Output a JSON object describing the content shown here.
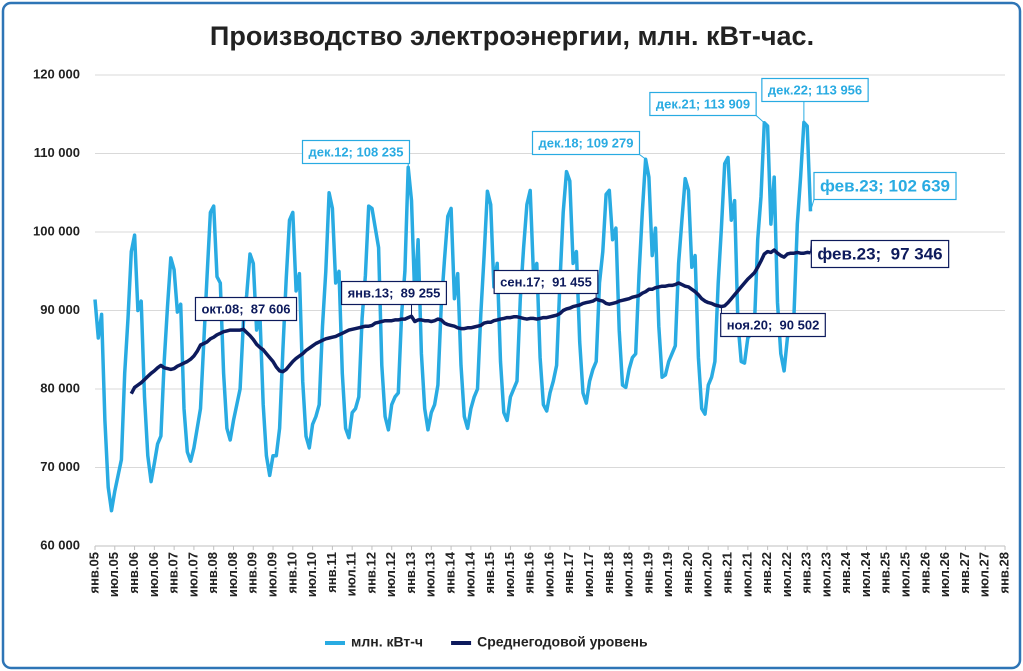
{
  "chart_data": {
    "type": "line",
    "title": "Производство электроэнергии, млн. кВт-час.",
    "categories": [
      "янв.05",
      null,
      null,
      null,
      null,
      null,
      "июл.05",
      null,
      null,
      null,
      null,
      null,
      "янв.06",
      null,
      null,
      null,
      null,
      null,
      "июл.06",
      null,
      null,
      null,
      null,
      null,
      "янв.07",
      null,
      null,
      null,
      null,
      null,
      "июл.07",
      null,
      null,
      null,
      null,
      null,
      "янв.08",
      null,
      null,
      null,
      null,
      null,
      "июл.08",
      null,
      null,
      null,
      null,
      null,
      "янв.09",
      null,
      null,
      null,
      null,
      null,
      "июл.09",
      null,
      null,
      null,
      null,
      null,
      "янв.10",
      null,
      null,
      null,
      null,
      null,
      "июл.10",
      null,
      null,
      null,
      null,
      null,
      "янв.11",
      null,
      null,
      null,
      null,
      null,
      "июл.11",
      null,
      null,
      null,
      null,
      null,
      "янв.12",
      null,
      null,
      null,
      null,
      null,
      "июл.12",
      null,
      null,
      null,
      null,
      null,
      "янв.13",
      null,
      null,
      null,
      null,
      null,
      "июл.13",
      null,
      null,
      null,
      null,
      null,
      "янв.14",
      null,
      null,
      null,
      null,
      null,
      "июл.14",
      null,
      null,
      null,
      null,
      null,
      "янв.15",
      null,
      null,
      null,
      null,
      null,
      "июл.15",
      null,
      null,
      null,
      null,
      null,
      "янв.16",
      null,
      null,
      null,
      null,
      null,
      "июл.16",
      null,
      null,
      null,
      null,
      null,
      "янв.17",
      null,
      null,
      null,
      null,
      null,
      "июл.17",
      null,
      null,
      null,
      null,
      null,
      "янв.18",
      null,
      null,
      null,
      null,
      null,
      "июл.18",
      null,
      null,
      null,
      null,
      null,
      "янв.19",
      null,
      null,
      null,
      null,
      null,
      "июл.19",
      null,
      null,
      null,
      null,
      null,
      "янв.20",
      null,
      null,
      null,
      null,
      null,
      "июл.20",
      null,
      null,
      null,
      null,
      null,
      "янв.21",
      null,
      null,
      null,
      null,
      null,
      "июл.21",
      null,
      null,
      null,
      null,
      null,
      "янв.22",
      null,
      null,
      null,
      null,
      null,
      "июл.22",
      null,
      null,
      null,
      null,
      null,
      "янв.23",
      null,
      null,
      null,
      null,
      null,
      "июл.23",
      null,
      null,
      null,
      null,
      null,
      "янв.24",
      null,
      null,
      null,
      null,
      null,
      "июл.24",
      null,
      null,
      null,
      null,
      null,
      "янв.25",
      null,
      null,
      null,
      null,
      null,
      "июл.25",
      null,
      null,
      null,
      null,
      null,
      "янв.26",
      null,
      null,
      null,
      null,
      null,
      "июл.26",
      null,
      null,
      null,
      null,
      null,
      "янв.27",
      null,
      null,
      null,
      null,
      null,
      "июл.27",
      null,
      null,
      null,
      null,
      null,
      "янв.28"
    ],
    "series": [
      {
        "name": "млн. кВт-ч",
        "color": "#29abe2",
        "values": [
          91400,
          86500,
          89500,
          76000,
          67500,
          64500,
          67000,
          69000,
          71000,
          82000,
          89000,
          97500,
          99600,
          90000,
          91200,
          79000,
          71500,
          68200,
          70500,
          73000,
          74000,
          83500,
          90500,
          96700,
          95200,
          89800,
          90800,
          77500,
          72000,
          70800,
          72500,
          75000,
          77500,
          86000,
          94500,
          102500,
          103300,
          94300,
          93500,
          82000,
          75000,
          73500,
          76000,
          78000,
          80000,
          88500,
          92000,
          97200,
          96000,
          87500,
          89500,
          78000,
          71500,
          69000,
          71500,
          71500,
          75000,
          85000,
          94000,
          101500,
          102500,
          92500,
          94700,
          81000,
          74000,
          72500,
          75500,
          76500,
          78000,
          88000,
          95000,
          105000,
          103000,
          93500,
          95000,
          82000,
          75000,
          73800,
          77000,
          77500,
          79000,
          89000,
          94500,
          103300,
          103000,
          100500,
          98000,
          83000,
          76500,
          74800,
          78000,
          79000,
          79500,
          89500,
          95000,
          108235,
          104000,
          91500,
          99000,
          84500,
          77500,
          74800,
          77000,
          78000,
          80500,
          90500,
          96500,
          102000,
          103000,
          91500,
          94700,
          83000,
          76500,
          75000,
          77500,
          79000,
          80000,
          89500,
          97000,
          105200,
          103500,
          93000,
          96000,
          83500,
          77000,
          76000,
          79000,
          80000,
          81000,
          91500,
          98000,
          103500,
          105300,
          94500,
          96000,
          84000,
          78000,
          77200,
          79500,
          81000,
          83000,
          93500,
          102500,
          107700,
          106500,
          96000,
          97500,
          86000,
          79500,
          78200,
          81000,
          82500,
          83500,
          93500,
          97500,
          104800,
          105300,
          99000,
          100500,
          87500,
          80500,
          80200,
          82500,
          84000,
          84500,
          94500,
          102500,
          109279,
          107000,
          97000,
          100500,
          88000,
          81500,
          81800,
          83500,
          84500,
          85500,
          96000,
          101500,
          106800,
          105300,
          95500,
          97000,
          84000,
          77500,
          76800,
          80500,
          81500,
          83500,
          93500,
          100500,
          108700,
          109500,
          101500,
          104000,
          88500,
          83500,
          83300,
          86500,
          87000,
          88000,
          99000,
          104500,
          113909,
          113500,
          101000,
          107000,
          91000,
          84500,
          82300,
          86500,
          88000,
          89500,
          101000,
          107000,
          113956,
          113500,
          102639,
          null,
          null,
          null,
          null,
          null,
          null,
          null,
          null,
          null,
          null,
          null,
          null,
          null,
          null,
          null,
          null,
          null,
          null,
          null,
          null,
          null,
          null,
          null,
          null,
          null,
          null,
          null,
          null,
          null,
          null,
          null,
          null,
          null,
          null,
          null,
          null,
          null,
          null,
          null,
          null,
          null,
          null,
          null,
          null,
          null,
          null,
          null,
          null,
          null,
          null,
          null,
          null,
          null,
          null,
          null,
          null,
          null,
          null,
          null
        ]
      },
      {
        "name": "Среднегодовой уровень",
        "color": "#0d1a5c",
        "values": [
          null,
          null,
          null,
          null,
          null,
          null,
          null,
          null,
          null,
          null,
          null,
          79400,
          80200,
          80500,
          80800,
          81200,
          81600,
          82000,
          82300,
          82700,
          83000,
          82700,
          82600,
          82500,
          82600,
          82900,
          83100,
          83300,
          83500,
          83800,
          84200,
          84800,
          85600,
          85800,
          86000,
          86400,
          86600,
          86900,
          87100,
          87300,
          87400,
          87500,
          87500,
          87500,
          87500,
          87606,
          87200,
          86800,
          86300,
          85700,
          85300,
          85000,
          84500,
          84000,
          83500,
          82800,
          82300,
          82200,
          82500,
          83000,
          83500,
          83900,
          84200,
          84500,
          84900,
          85200,
          85500,
          85800,
          86000,
          86200,
          86400,
          86500,
          86600,
          86700,
          86900,
          87100,
          87300,
          87500,
          87600,
          87700,
          87800,
          87900,
          88000,
          88000,
          88100,
          88400,
          88500,
          88600,
          88700,
          88700,
          88700,
          88800,
          88800,
          88900,
          88900,
          89100,
          89255,
          88600,
          88800,
          88800,
          88700,
          88700,
          88600,
          88700,
          88900,
          88800,
          88400,
          88200,
          88100,
          88000,
          87800,
          87700,
          87700,
          87800,
          87800,
          87900,
          88000,
          88100,
          88400,
          88500,
          88500,
          88700,
          88800,
          88900,
          89000,
          89100,
          89100,
          89200,
          89200,
          89100,
          89000,
          88900,
          89000,
          89000,
          88900,
          89000,
          89100,
          89100,
          89200,
          89300,
          89400,
          89600,
          90000,
          90200,
          90300,
          90500,
          90600,
          90700,
          90900,
          91000,
          91100,
          91200,
          91455,
          91300,
          91200,
          90900,
          90800,
          90900,
          91000,
          91200,
          91300,
          91400,
          91500,
          91700,
          91800,
          91900,
          92200,
          92400,
          92700,
          92700,
          92900,
          93000,
          93100,
          93100,
          93200,
          93200,
          93300,
          93500,
          93300,
          93100,
          93000,
          92700,
          92400,
          92000,
          91500,
          91200,
          91000,
          90900,
          90700,
          90600,
          90502,
          90600,
          91000,
          91500,
          92000,
          92500,
          93000,
          93500,
          94000,
          94400,
          94800,
          95500,
          96300,
          97200,
          97500,
          97400,
          97700,
          97300,
          97000,
          96800,
          97200,
          97300,
          97300,
          97400,
          97300,
          97300,
          97400,
          97346,
          null,
          null,
          null,
          null,
          null,
          null,
          null,
          null,
          null,
          null,
          null,
          null,
          null,
          null,
          null,
          null,
          null,
          null,
          null,
          null,
          null,
          null,
          null,
          null,
          null,
          null,
          null,
          null,
          null,
          null,
          null,
          null,
          null,
          null,
          null,
          null,
          null,
          null,
          null,
          null,
          null,
          null,
          null,
          null,
          null,
          null,
          null,
          null,
          null,
          null,
          null,
          null,
          null,
          null,
          null,
          null,
          null,
          null,
          null
        ]
      }
    ],
    "annotations": [
      {
        "text": "дек.12; 108 235"
      },
      {
        "text": "дек.18; 109 279"
      },
      {
        "text": "дек.21; 113 909"
      },
      {
        "text": "дек.22; 113 956"
      },
      {
        "text": "фев.23; 102 639"
      },
      {
        "text": "окт.08;  87 606"
      },
      {
        "text": "янв.13;  89 255"
      },
      {
        "text": "сен.17;  91 455"
      },
      {
        "text": "ноя.20;  90 502"
      },
      {
        "text": "фев.23;  97 346"
      }
    ],
    "ylim": [
      60000,
      120000
    ],
    "yticks": [
      {
        "value": 60000,
        "label": "60 000"
      },
      {
        "value": 70000,
        "label": "70 000"
      },
      {
        "value": 80000,
        "label": "80 000"
      },
      {
        "value": 90000,
        "label": "90 000"
      },
      {
        "value": 100000,
        "label": "100 000"
      },
      {
        "value": 110000,
        "label": "110 000"
      },
      {
        "value": 120000,
        "label": "120 000"
      }
    ],
    "grid": true,
    "legend": "bottom"
  }
}
